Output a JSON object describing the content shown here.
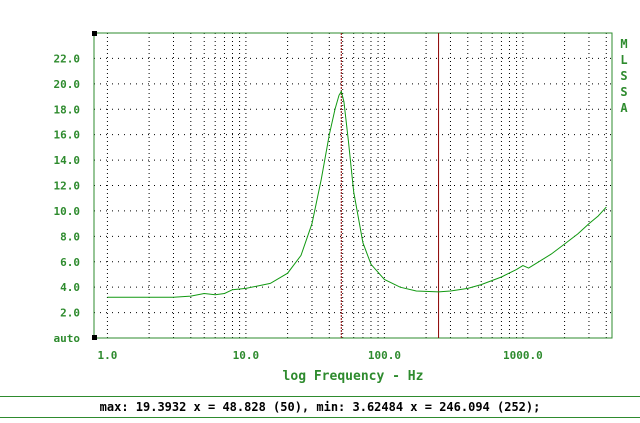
{
  "app": {
    "side_label": "MLSSA"
  },
  "status": {
    "text": "max: 19.3932 x = 48.828 (50), min: 3.62484 x = 246.094 (252);"
  },
  "colors": {
    "frame": "#2e8b2e",
    "curve": "#119911",
    "text": "#2e8b2e",
    "cursor": "#8b0000",
    "grid": "#000000"
  },
  "chart_data": {
    "type": "line",
    "title": "",
    "xlabel": "log Frequency - Hz",
    "ylabel": "",
    "x_scale": "log",
    "xlim": [
      0.8,
      4400
    ],
    "ylim": [
      0,
      24
    ],
    "grid": true,
    "x_tick_labels": [
      "1.0",
      "10.0",
      "100.0",
      "1000.0"
    ],
    "x_tick_values": [
      1,
      10,
      100,
      1000
    ],
    "y_tick_labels": [
      "auto",
      "2.0",
      "4.0",
      "6.0",
      "8.0",
      "10.0",
      "12.0",
      "14.0",
      "16.0",
      "18.0",
      "20.0",
      "22.0"
    ],
    "y_tick_values": [
      0,
      2,
      4,
      6,
      8,
      10,
      12,
      14,
      16,
      18,
      20,
      22
    ],
    "cursors": [
      48.828,
      246.094
    ],
    "series": [
      {
        "x": [
          1.0,
          2.0,
          3.0,
          4.0,
          5.0,
          6.0,
          7.0,
          8.0,
          10.0,
          15.0,
          20.0,
          25.0,
          30.0,
          35.0,
          40.0,
          44.0,
          47.0,
          48.828,
          51.0,
          55.0,
          60.0,
          70.0,
          80.0,
          100.0,
          130.0,
          170.0,
          246.094,
          300.0,
          400.0,
          500.0,
          700.0,
          900.0,
          1000.0,
          1100.0,
          1300.0,
          1600.0,
          2000.0,
          2500.0,
          3000.0,
          3500.0,
          4000.0
        ],
        "y": [
          3.2,
          3.2,
          3.2,
          3.3,
          3.5,
          3.4,
          3.5,
          3.8,
          3.9,
          4.3,
          5.1,
          6.5,
          9.0,
          12.5,
          16.0,
          18.0,
          19.1,
          19.3932,
          18.6,
          15.5,
          11.5,
          7.5,
          5.8,
          4.6,
          4.0,
          3.7,
          3.62484,
          3.7,
          3.9,
          4.2,
          4.8,
          5.4,
          5.7,
          5.5,
          6.0,
          6.6,
          7.4,
          8.2,
          9.0,
          9.6,
          10.3
        ]
      }
    ]
  }
}
